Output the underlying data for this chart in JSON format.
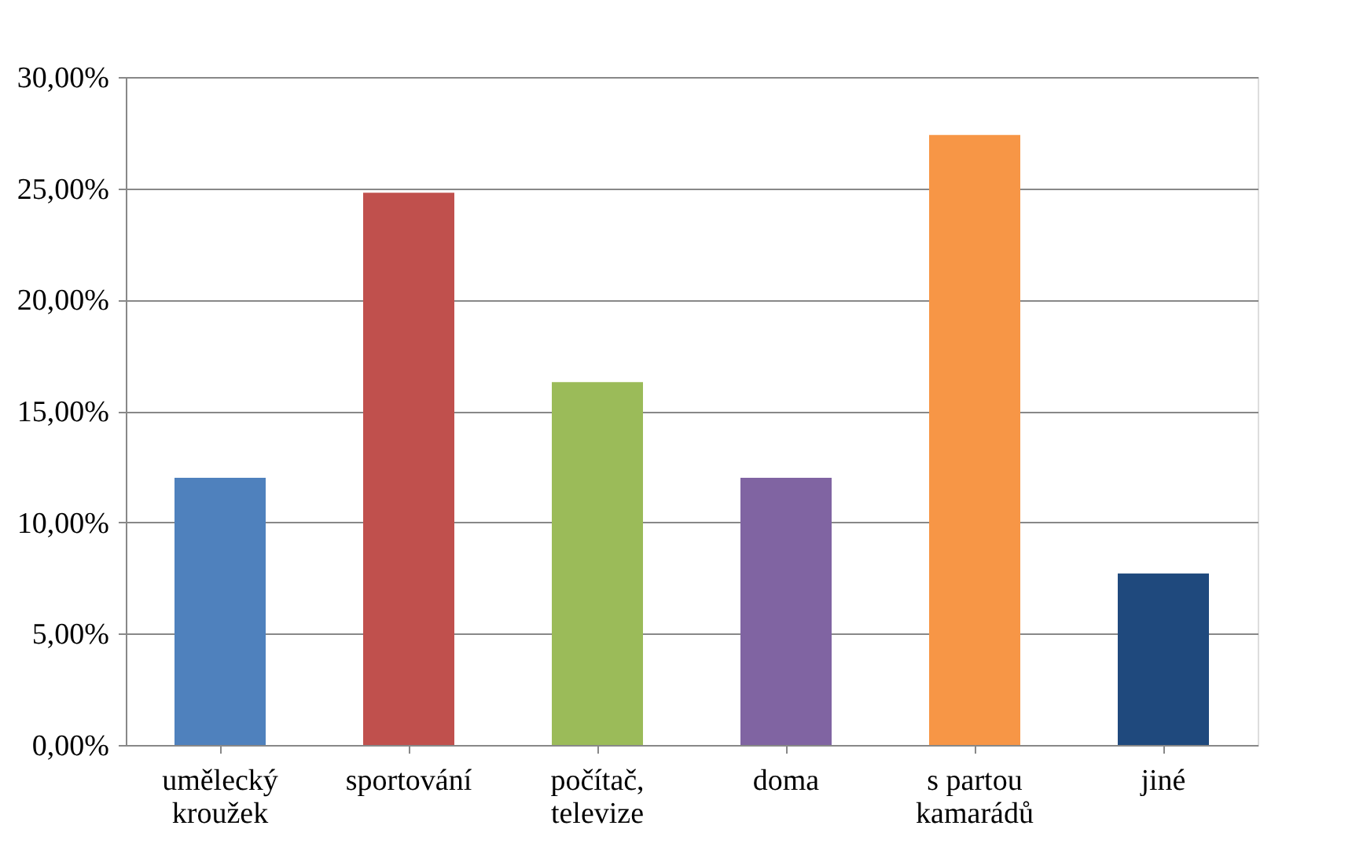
{
  "chart_data": {
    "type": "bar",
    "categories": [
      "umělecký kroužek",
      "sportování",
      "počítač, televize",
      "doma",
      "s partou kamarádů",
      "jiné"
    ],
    "values": [
      12.0,
      24.8,
      16.3,
      12.0,
      27.4,
      7.7
    ],
    "colors": [
      "#4f81bd",
      "#c0504d",
      "#9bbb59",
      "#8064a2",
      "#f79646",
      "#1f497d"
    ],
    "ylim": [
      0,
      30
    ],
    "yticks": [
      {
        "value": 0,
        "label": "0,00%"
      },
      {
        "value": 5,
        "label": "5,00%"
      },
      {
        "value": 10,
        "label": "10,00%"
      },
      {
        "value": 15,
        "label": "15,00%"
      },
      {
        "value": 20,
        "label": "20,00%"
      },
      {
        "value": 25,
        "label": "25,00%"
      },
      {
        "value": 30,
        "label": "30,00%"
      }
    ],
    "grid": "y",
    "legend": false
  }
}
